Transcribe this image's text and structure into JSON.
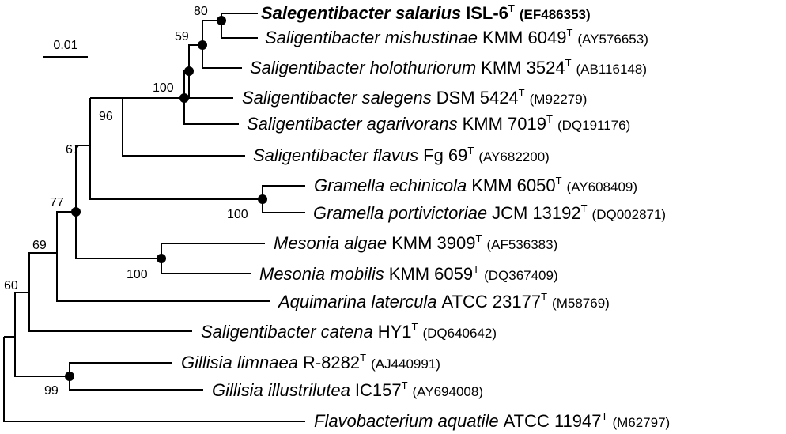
{
  "scale_bar": {
    "label": "0.01"
  },
  "taxa": [
    {
      "id": "t1",
      "genus_species": "Salegentibacter salarius",
      "strain": "ISL-6",
      "type_mark": "T",
      "accession": "(EF486353)",
      "bold": true
    },
    {
      "id": "t2",
      "genus_species": "Saligentibacter mishustinae",
      "strain": "KMM 6049",
      "type_mark": "T",
      "accession": "(AY576653)",
      "bold": false
    },
    {
      "id": "t3",
      "genus_species": "Saligentibacter holothuriorum",
      "strain": "KMM 3524",
      "type_mark": "T",
      "accession": "(AB116148)",
      "bold": false
    },
    {
      "id": "t4",
      "genus_species": "Saligentibacter salegens",
      "strain": "DSM 5424",
      "type_mark": "T",
      "accession": "(M92279)",
      "bold": false
    },
    {
      "id": "t5",
      "genus_species": "Saligentibacter agarivorans",
      "strain": "KMM 7019",
      "type_mark": "T",
      "accession": "(DQ191176)",
      "bold": false
    },
    {
      "id": "t6",
      "genus_species": "Saligentibacter flavus",
      "strain": "Fg 69",
      "type_mark": "T",
      "accession": "(AY682200)",
      "bold": false
    },
    {
      "id": "t7",
      "genus_species": "Gramella echinicola",
      "strain": "KMM 6050",
      "type_mark": "T",
      "accession": "(AY608409)",
      "bold": false
    },
    {
      "id": "t8",
      "genus_species": "Gramella portivictoriae",
      "strain": "JCM 13192",
      "type_mark": "T",
      "accession": "(DQ002871)",
      "bold": false
    },
    {
      "id": "t9",
      "genus_species": "Mesonia algae",
      "strain": "KMM 3909",
      "type_mark": "T",
      "accession": "(AF536383)",
      "bold": false
    },
    {
      "id": "t10",
      "genus_species": "Mesonia mobilis",
      "strain": "KMM 6059",
      "type_mark": "T",
      "accession": "(DQ367409)",
      "bold": false
    },
    {
      "id": "t11",
      "genus_species": "Aquimarina latercula",
      "strain": "ATCC 23177",
      "type_mark": "T",
      "accession": "(M58769)",
      "bold": false
    },
    {
      "id": "t12",
      "genus_species": "Saligentibacter catena",
      "strain": "HY1",
      "type_mark": "T",
      "accession": "(DQ640642)",
      "bold": false
    },
    {
      "id": "t13",
      "genus_species": "Gillisia limnaea",
      "strain": "R-8282",
      "type_mark": "T",
      "accession": "(AJ440991)",
      "bold": false
    },
    {
      "id": "t14",
      "genus_species": "Gillisia illustrilutea",
      "strain": "IC157",
      "type_mark": "T",
      "accession": "(AY694008)",
      "bold": false
    },
    {
      "id": "t15",
      "genus_species": "Flavobacterium aquatile",
      "strain": "ATCC 11947",
      "type_mark": "T",
      "accession": "(M62797)",
      "bold": false
    }
  ],
  "bootstrap": {
    "n_salarius_mishustinae": "80",
    "n_holothuriorum": "59",
    "n_salegens": "100",
    "n_flavus": "96",
    "n_gramella_outer": "67",
    "n_gramella": "100",
    "n_mesonia_outer": "77",
    "n_mesonia": "100",
    "n_aquimarina": "69",
    "n_catena": "60",
    "n_gillisia": "99"
  }
}
